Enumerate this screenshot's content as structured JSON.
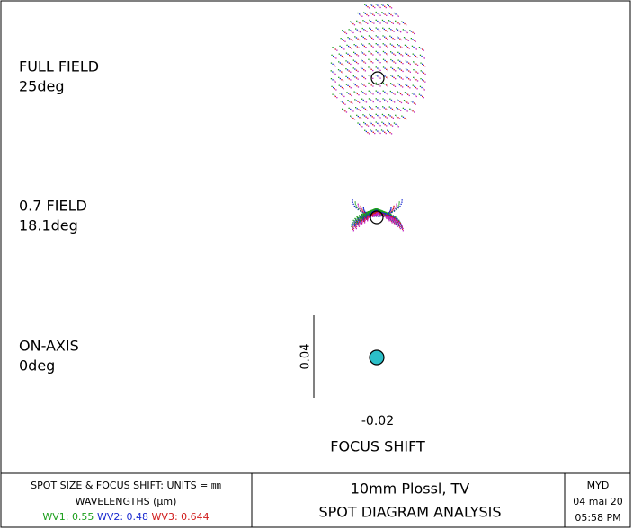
{
  "fields": [
    {
      "label": "FULL FIELD",
      "angle": "25deg"
    },
    {
      "label": "0.7 FIELD",
      "angle": "18.1deg"
    },
    {
      "label": "ON-AXIS",
      "angle": "0deg"
    }
  ],
  "scale_bar": {
    "label": "0.04"
  },
  "focus_shift": {
    "value": "-0.02",
    "label": "FOCUS SHIFT"
  },
  "footer": {
    "units": "SPOT SIZE & FOCUS SHIFT: UNITS = ㎜",
    "wavelengths_title": "WAVELENGTHS (µm)",
    "wavelengths": [
      {
        "name": "WV1:",
        "value": "0.55"
      },
      {
        "name": "WV2:",
        "value": "0.48"
      },
      {
        "name": "WV3:",
        "value": "0.644"
      }
    ],
    "title": "10mm Plossl, TV",
    "subtitle": "SPOT DIAGRAM ANALYSIS",
    "author": "MYD",
    "date": "04 mai 20",
    "time": "05:58 PM"
  }
}
